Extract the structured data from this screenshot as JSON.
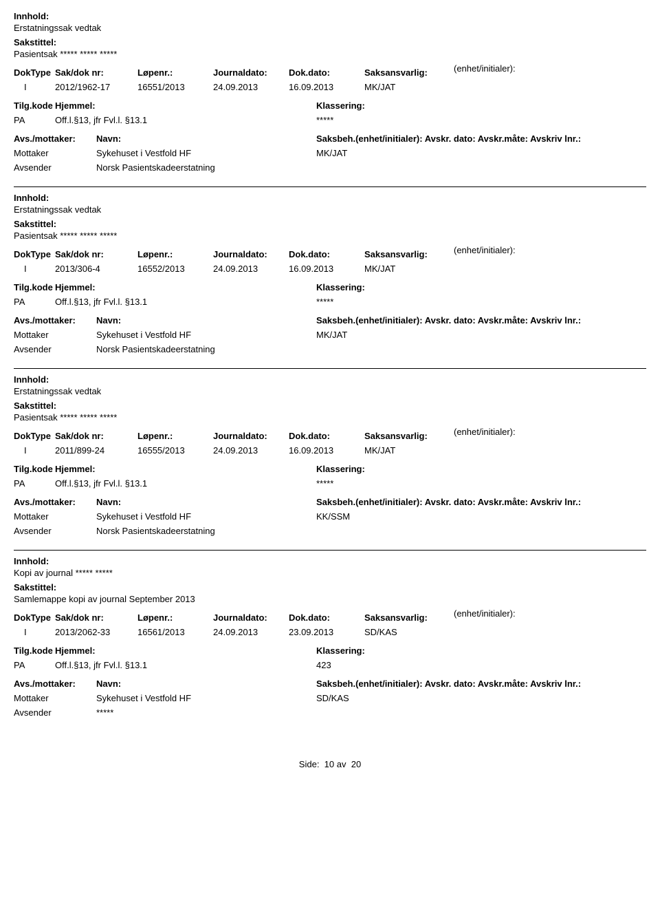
{
  "labels": {
    "innhold": "Innhold:",
    "sakstittel": "Sakstittel:",
    "doktype": "DokType",
    "sakdok": "Sak/dok nr:",
    "lopenr": "Løpenr.:",
    "jdato": "Journaldato:",
    "ddato": "Dok.dato:",
    "saksansv": "Saksansvarlig:",
    "enhet": "(enhet/initialer):",
    "tilgkode": "Tilg.kode",
    "hjemmel": "Hjemmel:",
    "klassering": "Klassering:",
    "avsmottaker": "Avs./mottaker:",
    "navn": "Navn:",
    "saksbeh": "Saksbeh.(enhet/initialer): Avskr. dato:  Avskr.måte: Avskriv lnr.:",
    "mottaker": "Mottaker",
    "avsender": "Avsender"
  },
  "records": [
    {
      "innhold": "Erstatningssak vedtak",
      "sakstittel": "Pasientsak ***** ***** *****",
      "doktype": "I",
      "sakdok": "2012/1962-17",
      "lopenr": "16551/2013",
      "jdato": "24.09.2013",
      "ddato": "16.09.2013",
      "saksansv": "MK/JAT",
      "tilgkode": "PA",
      "hjemmel": "Off.l.§13, jfr Fvl.l. §13.1",
      "klassering": "*****",
      "mottaker_navn": "Sykehuset i Vestfold HF",
      "mottaker_saksbeh": "MK/JAT",
      "avsender_navn": "Norsk Pasientskadeerstatning"
    },
    {
      "innhold": "Erstatningssak vedtak",
      "sakstittel": "Pasientsak ***** ***** *****",
      "doktype": "I",
      "sakdok": "2013/306-4",
      "lopenr": "16552/2013",
      "jdato": "24.09.2013",
      "ddato": "16.09.2013",
      "saksansv": "MK/JAT",
      "tilgkode": "PA",
      "hjemmel": "Off.l.§13, jfr Fvl.l. §13.1",
      "klassering": "*****",
      "mottaker_navn": "Sykehuset i Vestfold HF",
      "mottaker_saksbeh": "MK/JAT",
      "avsender_navn": "Norsk Pasientskadeerstatning"
    },
    {
      "innhold": "Erstatningssak vedtak",
      "sakstittel": "Pasientsak ***** ***** *****",
      "doktype": "I",
      "sakdok": "2011/899-24",
      "lopenr": "16555/2013",
      "jdato": "24.09.2013",
      "ddato": "16.09.2013",
      "saksansv": "MK/JAT",
      "tilgkode": "PA",
      "hjemmel": "Off.l.§13, jfr Fvl.l. §13.1",
      "klassering": "*****",
      "mottaker_navn": "Sykehuset i Vestfold HF",
      "mottaker_saksbeh": "KK/SSM",
      "avsender_navn": "Norsk Pasientskadeerstatning"
    },
    {
      "innhold": "Kopi av journal ***** *****",
      "sakstittel": "Samlemappe kopi av journal September 2013",
      "doktype": "I",
      "sakdok": "2013/2062-33",
      "lopenr": "16561/2013",
      "jdato": "24.09.2013",
      "ddato": "23.09.2013",
      "saksansv": "SD/KAS",
      "tilgkode": "PA",
      "hjemmel": "Off.l.§13, jfr Fvl.l. §13.1",
      "klassering": "423",
      "mottaker_navn": "Sykehuset i Vestfold HF",
      "mottaker_saksbeh": "SD/KAS",
      "avsender_navn": "*****"
    }
  ],
  "footer": {
    "side": "Side:",
    "page": "10",
    "av": "av",
    "total": "20"
  }
}
